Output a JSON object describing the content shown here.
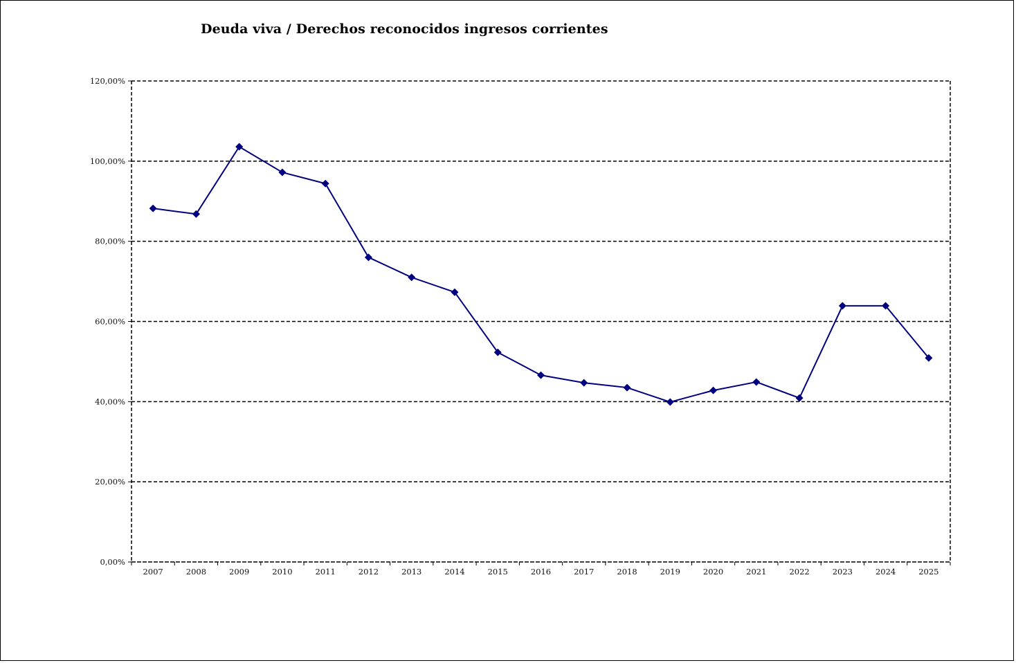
{
  "chart": {
    "title": "Deuda viva / Derechos reconocidos ingresos corrientes"
  },
  "chart_data": {
    "type": "line",
    "title": "Deuda viva / Derechos reconocidos ingresos corrientes",
    "xlabel": "",
    "ylabel": "",
    "categories": [
      "2007",
      "2008",
      "2009",
      "2010",
      "2011",
      "2012",
      "2013",
      "2014",
      "2015",
      "2016",
      "2017",
      "2018",
      "2019",
      "2020",
      "2021",
      "2022",
      "2023",
      "2024",
      "2025"
    ],
    "series": [
      {
        "name": "Deuda viva / Derechos reconocidos ingresos corrientes",
        "color": "#000080",
        "marker": "diamond",
        "values": [
          88.2,
          86.8,
          103.6,
          97.2,
          94.4,
          76.0,
          71.0,
          67.3,
          52.3,
          46.6,
          44.7,
          43.5,
          39.9,
          42.8,
          44.9,
          40.9,
          63.9,
          63.9,
          50.9
        ]
      }
    ],
    "ylim": [
      0,
      120
    ],
    "yticks": [
      0,
      20,
      40,
      60,
      80,
      100,
      120
    ],
    "ytick_labels": [
      "0,00%",
      "20,00%",
      "40,00%",
      "60,00%",
      "80,00%",
      "100,00%",
      "120,00%"
    ],
    "grid": {
      "horizontal": true,
      "style": "dashed",
      "color": "#000000"
    },
    "legend": null
  }
}
